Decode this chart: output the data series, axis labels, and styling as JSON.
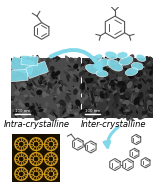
{
  "bg_color": "#ffffff",
  "label_intra": "Intra-crystalline",
  "label_inter": "Inter-crystalline",
  "cyan_color": "#80d8e8",
  "cyan_light": "#a0e0f0",
  "text_color": "#000000",
  "label_fontsize": 6.0,
  "mol_color": "#555555",
  "zeolite_pore_color": "#d4a020",
  "zeolite_bg": "#1a1000",
  "mic1_bg": "#505050",
  "mic2_bg": "#383838",
  "figsize": [
    1.53,
    1.89
  ],
  "dpi": 100
}
